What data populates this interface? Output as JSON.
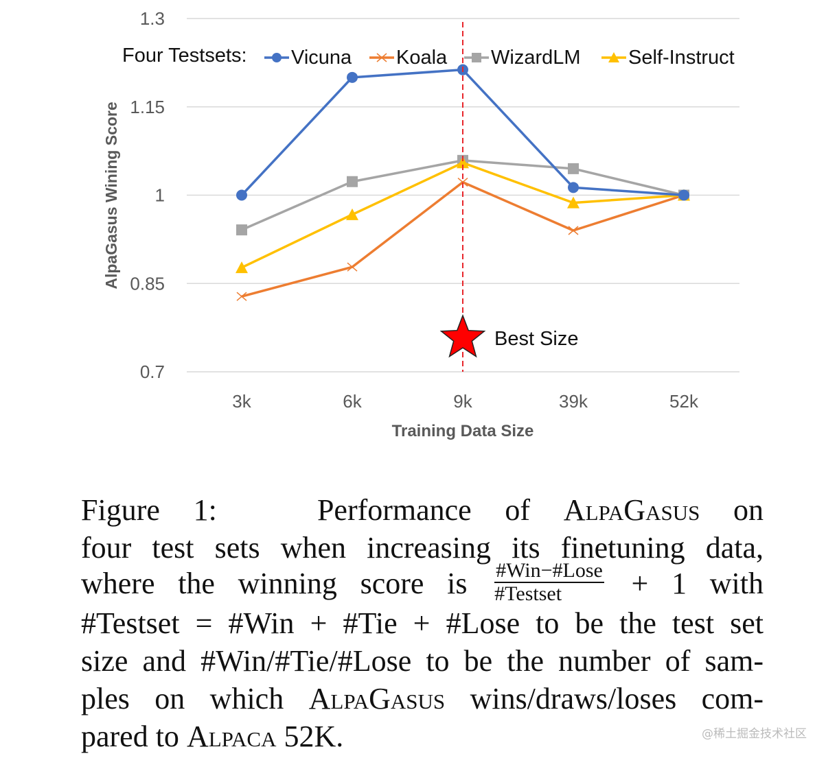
{
  "chart_data": {
    "type": "line",
    "title": "",
    "xlabel": "Training Data Size",
    "ylabel": "AlpaGasus Wining Score",
    "categories": [
      "3k",
      "6k",
      "9k",
      "39k",
      "52k"
    ],
    "ylim": [
      0.7,
      1.3
    ],
    "yticks": [
      0.7,
      0.85,
      1,
      1.15,
      1.3
    ],
    "ytick_labels": [
      "0.7",
      "0.85",
      "1",
      "1.15",
      "1.3"
    ],
    "grid": true,
    "legend_title": "Four Testsets:",
    "legend_position": "top",
    "series": [
      {
        "name": "Vicuna",
        "color": "#4472C4",
        "marker": "circle",
        "values": [
          1.0,
          1.2,
          1.213,
          1.013,
          1.0
        ]
      },
      {
        "name": "Koala",
        "color": "#ED7D31",
        "marker": "x",
        "values": [
          0.828,
          0.878,
          1.022,
          0.94,
          1.0
        ]
      },
      {
        "name": "WizardLM",
        "color": "#A5A5A5",
        "marker": "square",
        "values": [
          0.941,
          1.023,
          1.059,
          1.045,
          1.0
        ]
      },
      {
        "name": "Self-Instruct",
        "color": "#FFC000",
        "marker": "triangle",
        "values": [
          0.877,
          0.967,
          1.055,
          0.987,
          1.0
        ]
      }
    ],
    "annotations": [
      {
        "text": "Best Size",
        "category": "9k",
        "marker": "red-star",
        "line": "red-dashed-vertical"
      }
    ]
  },
  "caption": {
    "l1a": "Figure 1:",
    "l1b": "Performance of",
    "l1c": "AlpaGasus",
    "l1d": "on",
    "l2": "four test sets when increasing its finetuning data,",
    "l3a": "where the winning score is",
    "frac_num": "#Win−#Lose",
    "frac_den": "#Testset",
    "l3b": "+ 1 with",
    "l4": "#Testset = #Win + #Tie + #Lose to be the test set",
    "l5": "size and #Win/#Tie/#Lose to be the number of sam-",
    "l6a": "ples on which",
    "l6b": "AlpaGasus",
    "l6c": "wins/draws/loses com-",
    "l7a": "pared to",
    "l7b": "Alpaca",
    "l7c": "52K."
  },
  "watermark": "@稀土掘金技术社区"
}
